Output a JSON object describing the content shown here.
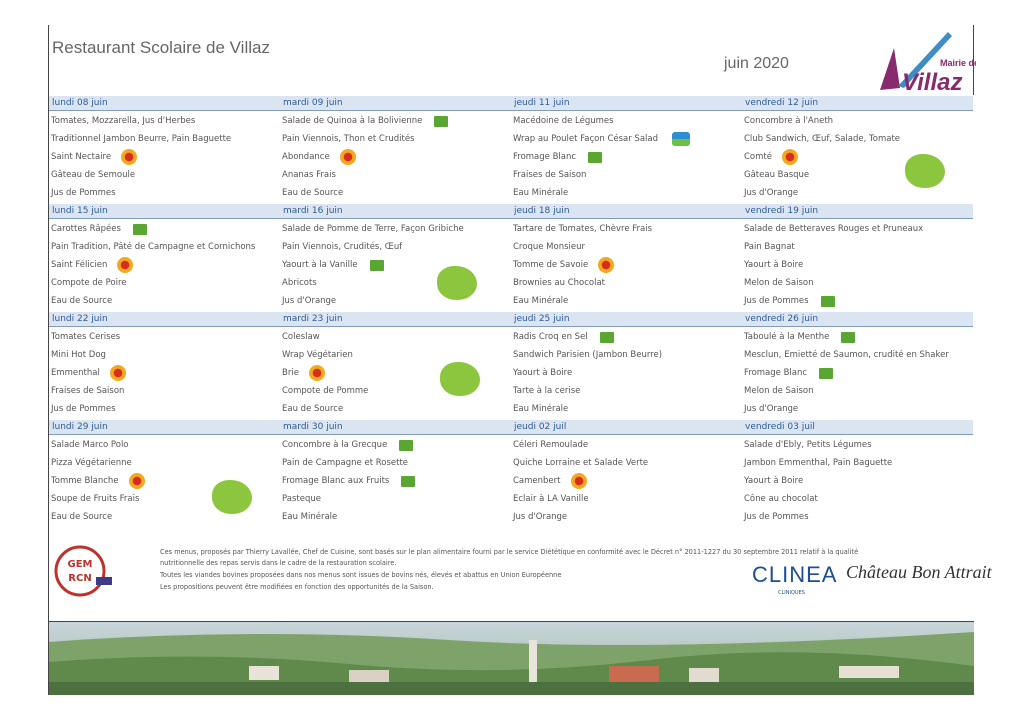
{
  "header": {
    "title": "Restaurant Scolaire de Villaz",
    "period": "juin 2020",
    "logo_top": "Mairie de",
    "logo_main": "Villaz"
  },
  "weeks": [
    {
      "days": [
        {
          "day": "lundi 08 juin",
          "items": [
            "Tomates, Mozzarella, Jus d'Herbes",
            "Traditionnel Jambon Beurre, Pain Baguette",
            "Saint Nectaire",
            "Gâteau de Semoule",
            "Jus de Pommes"
          ]
        },
        {
          "day": "mardi 09 juin",
          "items": [
            "Salade de Quinoa à la Bolivienne",
            "Pain Viennois, Thon et Crudités",
            "Abondance",
            "Ananas Frais",
            "Eau de Source"
          ]
        },
        {
          "day": "jeudi 11 juin",
          "items": [
            "Macédoine de Légumes",
            "Wrap au Poulet Façon César Salad",
            "Fromage Blanc",
            "Fraises de Saison",
            "Eau Minérale"
          ]
        },
        {
          "day": "vendredi 12 juin",
          "items": [
            "Concombre à l'Aneth",
            "Club Sandwich, Œuf, Salade, Tomate",
            "Comté",
            "Gâteau Basque",
            "Jus d'Orange"
          ]
        }
      ]
    },
    {
      "days": [
        {
          "day": "lundi 15 juin",
          "items": [
            "Carottes Râpées",
            "Pain Tradition, Pâté de Campagne et Cornichons",
            "Saint Félicien",
            "Compote de Poire",
            "Eau de Source"
          ]
        },
        {
          "day": "mardi 16 juin",
          "items": [
            "Salade de Pomme de Terre, Façon Gribiche",
            "Pain Viennois, Crudités, Œuf",
            "Yaourt à la Vanille",
            "Abricots",
            "Jus d'Orange"
          ]
        },
        {
          "day": "jeudi 18 juin",
          "items": [
            "Tartare de Tomates, Chèvre Frais",
            "Croque Monsieur",
            "Tomme de Savoie",
            "Brownies au Chocolat",
            "Eau Minérale"
          ]
        },
        {
          "day": "vendredi 19 juin",
          "items": [
            "Salade de Betteraves Rouges et Pruneaux",
            "Pain Bagnat",
            "Yaourt à Boire",
            "Melon de Saison",
            "Jus de Pommes"
          ]
        }
      ]
    },
    {
      "days": [
        {
          "day": "lundi 22 juin",
          "items": [
            "Tomates Cerises",
            "Mini Hot Dog",
            "Emmenthal",
            "Fraises de Saison",
            "Jus de Pommes"
          ]
        },
        {
          "day": "mardi 23 juin",
          "items": [
            "Coleslaw",
            "Wrap Végétarien",
            "Brie",
            "Compote de Pomme",
            "Eau de Source"
          ]
        },
        {
          "day": "jeudi 25 juin",
          "items": [
            "Radis Croq en Sel",
            "Sandwich Parisien (Jambon Beurre)",
            "Yaourt à Boire",
            "Tarte à la cerise",
            "Eau Minérale"
          ]
        },
        {
          "day": "vendredi 26 juin",
          "items": [
            "Taboulé à la Menthe",
            "Mesclun, Emietté de Saumon, crudité en Shaker",
            "Fromage Blanc",
            "Melon de Saison",
            "Jus d'Orange"
          ]
        }
      ]
    },
    {
      "days": [
        {
          "day": "lundi 29 juin",
          "items": [
            "Salade Marco Polo",
            "Pizza Végétarienne",
            "Tomme Blanche",
            "Soupe de Fruits Frais",
            "Eau de Source"
          ]
        },
        {
          "day": "mardi 30 juin",
          "items": [
            "Concombre à la Grecque",
            "Pain de Campagne et Rosette",
            "Fromage Blanc aux Fruits",
            "Pasteque",
            "Eau Minérale"
          ]
        },
        {
          "day": "jeudi 02 juil",
          "items": [
            "Céleri Remoulade",
            "Quiche Lorraine et Salade Verte",
            "Camenbert",
            "Eclair à LA Vanille",
            "Jus d'Orange"
          ]
        },
        {
          "day": "vendredi 03 juil",
          "items": [
            "Salade d'Ebly, Petits Légumes",
            "Jambon Emmenthal, Pain Baguette",
            "Yaourt à Boire",
            "Cône au chocolat",
            "Jus de Pommes"
          ]
        }
      ]
    }
  ],
  "footer": {
    "notes": [
      "Ces menus, proposés par Thierry Lavallée, Chef de Cuisine, sont basés sur le plan alimentaire fourni par le service Diététique en conformité avec le Décret n° 2011-1227 du 30 septembre 2011 relatif à la qualité",
      "nutritionnelle des repas servis dans le cadre de la restauration scolaire.",
      "Toutes les viandes bovines proposées dans nos menus sont issues de bovins nés, élevés et abattus en Union Européenne",
      "Les propositions peuvent être modifiées en fonction des opportunités de la Saison."
    ],
    "gem": [
      "GEM",
      "RCN"
    ],
    "clinea": "CLINEA",
    "clinea_sub": "CLINIQUES",
    "chateau": "Château Bon Attrait"
  }
}
